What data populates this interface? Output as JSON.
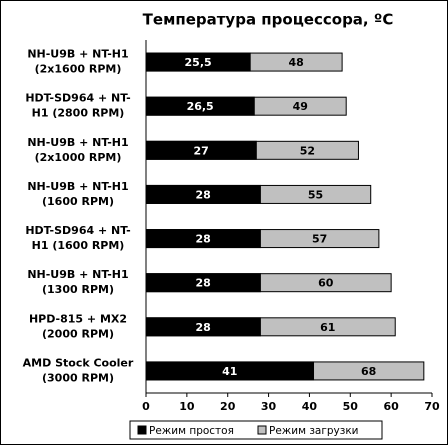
{
  "chart_data": {
    "type": "bar",
    "orientation": "horizontal",
    "overlap": true,
    "title": "Температура процессора, ºС",
    "categories": [
      [
        "NH-U9B + NT-H1",
        "(2x1600 RPM)"
      ],
      [
        "HDT-SD964 + NT-",
        "H1 (2800 RPM)"
      ],
      [
        "NH-U9B + NT-H1",
        "(2x1000 RPM)"
      ],
      [
        "NH-U9B + NT-H1",
        "(1600 RPM)"
      ],
      [
        "HDT-SD964 + NT-",
        "H1 (1600 RPM)"
      ],
      [
        "NH-U9B + NT-H1",
        "(1300 RPM)"
      ],
      [
        "HPD-815 + MX2",
        "(2000 RPM)"
      ],
      [
        "AMD Stock Cooler",
        "(3000 RPM)"
      ]
    ],
    "series": [
      {
        "name": "Режим загрузки",
        "color": "#c0c0c0",
        "values": [
          48,
          49,
          52,
          55,
          57,
          60,
          61,
          68
        ]
      },
      {
        "name": "Режим простоя",
        "color": "#000000",
        "values": [
          25.5,
          26.5,
          27,
          28,
          28,
          28,
          28,
          41
        ],
        "value_labels": [
          "25,5",
          "26,5",
          "27",
          "28",
          "28",
          "28",
          "28",
          "41"
        ]
      }
    ],
    "xlim": [
      0,
      70
    ],
    "xticks": [
      0,
      10,
      20,
      30,
      40,
      50,
      60,
      70
    ],
    "legend": "bottom"
  }
}
